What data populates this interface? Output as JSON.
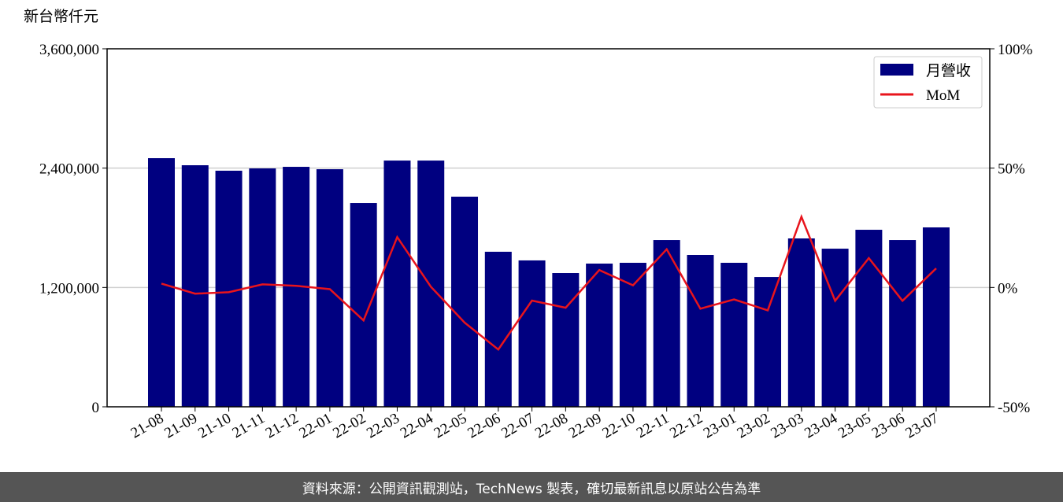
{
  "chart_data": {
    "type": "bar_line",
    "y_axis_label": "新台幣仟元",
    "categories": [
      "21-08",
      "21-09",
      "21-10",
      "21-11",
      "21-12",
      "22-01",
      "22-02",
      "22-03",
      "22-04",
      "22-05",
      "22-06",
      "22-07",
      "22-08",
      "22-09",
      "22-10",
      "22-11",
      "22-12",
      "23-01",
      "23-02",
      "23-03",
      "23-04",
      "23-05",
      "23-06",
      "23-07"
    ],
    "series": [
      {
        "name": "月營收",
        "type": "bar",
        "color": "#000080",
        "values": [
          2500000,
          2429000,
          2374000,
          2397000,
          2413000,
          2389000,
          2049000,
          2476000,
          2476000,
          2113000,
          1559000,
          1472000,
          1345000,
          1440000,
          1448000,
          1677000,
          1527000,
          1448000,
          1305000,
          1693000,
          1590000,
          1780000,
          1677000,
          1804000
        ]
      },
      {
        "name": "MoM",
        "type": "line",
        "axis": "y2",
        "color": "#e8141c",
        "values": [
          1.6,
          -2.6,
          -2.0,
          1.3,
          0.7,
          -0.7,
          -13.8,
          21.1,
          0.3,
          -14.7,
          -26,
          -5.5,
          -8.5,
          7.3,
          0.9,
          16,
          -8.9,
          -5,
          -9.6,
          29.6,
          -5.6,
          12.3,
          -5.6,
          8
        ]
      }
    ],
    "ylim": [
      0,
      3600000
    ],
    "yticks": [
      0,
      {
        "value": 1200000,
        "label": "1,200,000"
      },
      {
        "value": 2400000,
        "label": "2,400,000"
      },
      {
        "value": 3600000,
        "label": "3,600,000"
      }
    ],
    "y2lim": [
      -50,
      100
    ],
    "y2ticks": [
      {
        "value": -50,
        "label": "-50%"
      },
      {
        "value": 0,
        "label": "0%"
      },
      {
        "value": 50,
        "label": "50%"
      },
      {
        "value": 100,
        "label": "100%"
      }
    ],
    "grid": true,
    "legend": "upper right"
  },
  "footer": "資料來源：公開資訊觀測站，TechNews 製表，確切最新訊息以原站公告為準"
}
